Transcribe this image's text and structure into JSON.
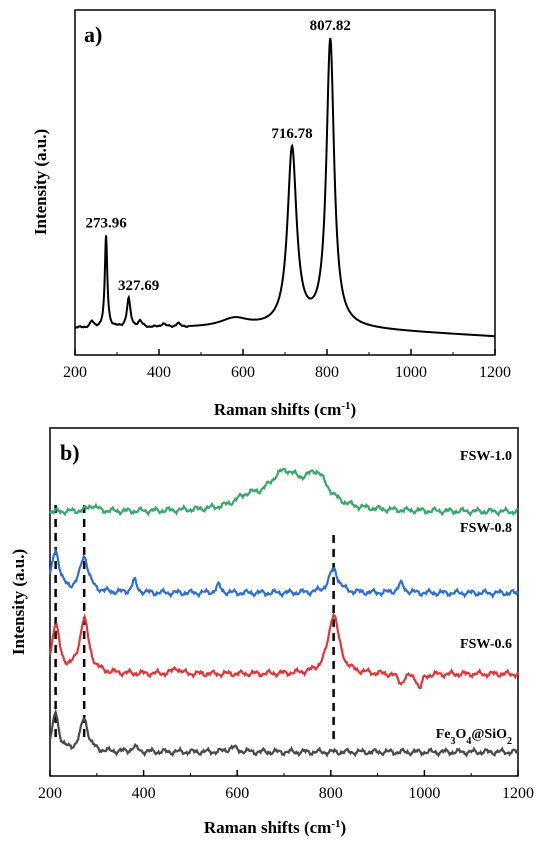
{
  "chart_data": [
    {
      "type": "line",
      "panel_label": "a)",
      "xlabel": "Raman shifts (cm",
      "xlabel_sup": "-1",
      "xlabel_end": ")",
      "ylabel": "Intensity (a.u.)",
      "xlim": [
        200,
        1200
      ],
      "xticks": [
        "200",
        "400",
        "600",
        "800",
        "1000",
        "1200"
      ],
      "y_ticks_shown": false,
      "grid": false,
      "series": [
        {
          "color": "#000000",
          "peaks": [
            {
              "x": 240,
              "height": 0.02,
              "width": 5
            },
            {
              "x": 273.96,
              "height": 0.32,
              "width": 3.5
            },
            {
              "x": 327.69,
              "height": 0.1,
              "width": 5
            },
            {
              "x": 355,
              "height": 0.02,
              "width": 6
            },
            {
              "x": 410,
              "height": 0.012,
              "width": 6
            },
            {
              "x": 445,
              "height": 0.012,
              "width": 5
            },
            {
              "x": 580,
              "height": 0.03,
              "width": 40
            },
            {
              "x": 716.78,
              "height": 0.62,
              "width": 13
            },
            {
              "x": 807.82,
              "height": 1.0,
              "width": 11
            }
          ]
        }
      ],
      "annotations": [
        {
          "x": 273.96,
          "text": "273.96"
        },
        {
          "x": 327.69,
          "text": "327.69"
        },
        {
          "x": 716.78,
          "text": "716.78"
        },
        {
          "x": 807.82,
          "text": "807.82"
        }
      ]
    },
    {
      "type": "line",
      "panel_label": "b)",
      "xlabel": "Raman shifts (cm",
      "xlabel_sup": "-1",
      "xlabel_end": ")",
      "ylabel": "Intensity (a.u.)",
      "xlim": [
        200,
        1200
      ],
      "xticks": [
        "200",
        "400",
        "600",
        "800",
        "1000",
        "1200"
      ],
      "y_ticks_shown": false,
      "grid": false,
      "dashed_guides_x": [
        212,
        273,
        806
      ],
      "series": [
        {
          "name": "FSW-1.0",
          "color": "#3ba86a",
          "offset": 0.8,
          "peaks": [
            {
              "x": 290,
              "height": 0.02,
              "width": 12
            },
            {
              "x": 700,
              "height": 0.12,
              "width": 45
            },
            {
              "x": 770,
              "height": 0.1,
              "width": 30
            },
            {
              "x": 620,
              "height": 0.03,
              "width": 30
            }
          ]
        },
        {
          "name": "FSW-0.8",
          "color": "#2f6fd0",
          "offset": 0.53,
          "peaks": [
            {
              "x": 212,
              "height": 0.14,
              "width": 10
            },
            {
              "x": 273,
              "height": 0.12,
              "width": 11
            },
            {
              "x": 380,
              "height": 0.04,
              "width": 6
            },
            {
              "x": 560,
              "height": 0.025,
              "width": 6
            },
            {
              "x": 806,
              "height": 0.08,
              "width": 12
            },
            {
              "x": 950,
              "height": 0.03,
              "width": 8
            }
          ]
        },
        {
          "name": "FSW-0.6",
          "color": "#e0363a",
          "offset": 0.26,
          "peaks": [
            {
              "x": 212,
              "height": 0.16,
              "width": 10
            },
            {
              "x": 273,
              "height": 0.18,
              "width": 12
            },
            {
              "x": 470,
              "height": 0.02,
              "width": 8
            },
            {
              "x": 806,
              "height": 0.2,
              "width": 14
            },
            {
              "x": 950,
              "height": -0.03,
              "width": 8
            },
            {
              "x": 990,
              "height": -0.05,
              "width": 6
            }
          ]
        },
        {
          "name": "Fe",
          "name_sub1": "3",
          "name_mid": "O",
          "name_sub2": "4",
          "name_end": "@SiO",
          "name_sub3": "2",
          "color": "#4a4a4a",
          "offset": 0.0,
          "peaks": [
            {
              "x": 212,
              "height": 0.13,
              "width": 8
            },
            {
              "x": 273,
              "height": 0.11,
              "width": 10
            },
            {
              "x": 380,
              "height": 0.015,
              "width": 8
            },
            {
              "x": 590,
              "height": 0.015,
              "width": 12
            }
          ]
        }
      ]
    }
  ]
}
